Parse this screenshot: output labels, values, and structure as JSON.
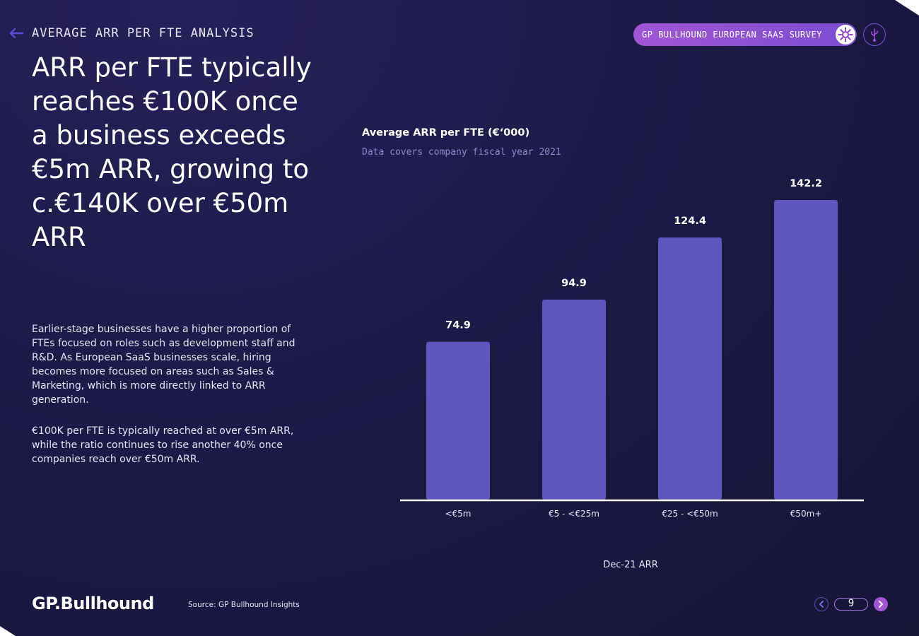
{
  "header": {
    "section_label": "AVERAGE ARR PER FTE ANALYSIS",
    "survey_pill_label": "GP BULLHOUND EUROPEAN SAAS SURVEY"
  },
  "headline": "ARR per FTE typically reaches €100K once a business exceeds €5m ARR, growing to c.€140K over €50m ARR",
  "body": [
    "Earlier-stage businesses have a higher proportion of FTEs focused on roles such as development staff and R&D. As European SaaS businesses scale, hiring becomes more focused on areas such as Sales & Marketing, which is more directly linked to ARR generation.",
    "€100K per FTE is typically reached at over €5m ARR, while the ratio continues to rise another 40% once companies reach over €50m ARR."
  ],
  "chart_data": {
    "type": "bar",
    "title": "Average ARR per FTE (€‘000)",
    "subtitle": "Data covers company fiscal year 2021",
    "categories": [
      "<€5m",
      "€5 - <€25m",
      "€25 - <€50m",
      "€50m+"
    ],
    "values": [
      74.9,
      94.9,
      124.4,
      142.2
    ],
    "data_labels": [
      "74.9",
      "94.9",
      "124.4",
      "142.2"
    ],
    "xlabel": "Dec-21 ARR",
    "ylabel": "",
    "ylim": [
      0,
      142.2
    ],
    "grid": false,
    "bar_color": "#5f55bf"
  },
  "footer": {
    "logo": "GP.Bullhound",
    "source": "Source: GP Bullhound Insights",
    "page_number": "9"
  },
  "colors": {
    "accent": "#a056d6",
    "bar": "#5f55bf",
    "background": "#1d1a47"
  }
}
